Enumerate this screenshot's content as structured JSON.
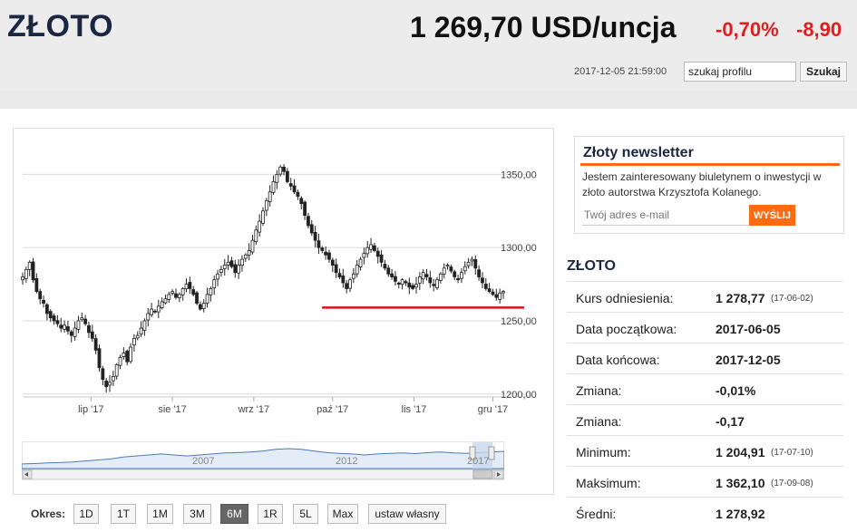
{
  "header": {
    "title": "ZŁOTO",
    "price": "1 269,70 USD/uncja",
    "change_pct": "-0,70%",
    "change_abs": "-8,90",
    "timestamp": "2017-12-05 21:59:00",
    "search_value": "szukaj profilu",
    "search_button": "Szukaj"
  },
  "colors": {
    "accent": "#ff6a13",
    "negative": "#e01e1e",
    "title": "#1a2740",
    "support_line": "#e0101a",
    "navigator_line": "#4a7bb7"
  },
  "chart_data": {
    "type": "candlestick",
    "x_tick_labels": [
      "lip '17",
      "sie '17",
      "wrz '17",
      "paź '17",
      "lis '17",
      "gru '17"
    ],
    "y_tick_labels": [
      "1350,00",
      "1300,00",
      "1250,00",
      "1200,00"
    ],
    "y_ticks": [
      1350,
      1300,
      1250,
      1200
    ],
    "ylim": [
      1198,
      1375
    ],
    "x_range": [
      "2017-06-05",
      "2017-12-05"
    ],
    "support_line": 1259,
    "grid": true,
    "close_values": [
      1280,
      1285,
      1290,
      1278,
      1270,
      1265,
      1262,
      1255,
      1252,
      1250,
      1248,
      1245,
      1247,
      1243,
      1240,
      1245,
      1250,
      1252,
      1248,
      1242,
      1238,
      1230,
      1218,
      1210,
      1205,
      1208,
      1212,
      1220,
      1225,
      1228,
      1222,
      1232,
      1238,
      1240,
      1245,
      1250,
      1255,
      1258,
      1256,
      1260,
      1263,
      1265,
      1268,
      1270,
      1266,
      1268,
      1272,
      1275,
      1272,
      1268,
      1262,
      1258,
      1262,
      1268,
      1272,
      1278,
      1282,
      1285,
      1288,
      1290,
      1287,
      1283,
      1288,
      1292,
      1295,
      1298,
      1305,
      1312,
      1318,
      1325,
      1332,
      1338,
      1345,
      1350,
      1355,
      1352,
      1345,
      1342,
      1338,
      1335,
      1330,
      1322,
      1315,
      1310,
      1305,
      1300,
      1298,
      1295,
      1292,
      1288,
      1283,
      1280,
      1276,
      1272,
      1278,
      1282,
      1288,
      1292,
      1296,
      1300,
      1302,
      1298,
      1294,
      1290,
      1286,
      1282,
      1280,
      1277,
      1275,
      1278,
      1276,
      1273,
      1272,
      1275,
      1280,
      1283,
      1280,
      1276,
      1274,
      1278,
      1282,
      1286,
      1288,
      1284,
      1280,
      1278,
      1283,
      1287,
      1290,
      1292,
      1286,
      1280,
      1276,
      1272,
      1270,
      1268,
      1266,
      1269,
      1270
    ],
    "navigator": {
      "tick_labels": [
        "2007",
        "2012",
        "2017"
      ]
    }
  },
  "period": {
    "label": "Okres:",
    "buttons": [
      "1D",
      "1T",
      "1M",
      "3M",
      "6M",
      "1R",
      "5L",
      "Max",
      "ustaw własny"
    ],
    "active": "6M"
  },
  "newsletter": {
    "title": "Złoty newsletter",
    "text": "Jestem zainteresowany biuletynem o inwestycji w złoto autorstwa Krzysztofa Kolanego.",
    "email_placeholder": "Twój adres e-mail",
    "send_button": "WYŚLIJ"
  },
  "stats": {
    "title": "ZŁOTO",
    "rows": [
      {
        "label": "Kurs odniesienia:",
        "value": "1 278,77",
        "date": "(17-06-02)"
      },
      {
        "label": "Data początkowa:",
        "value": "2017-06-05",
        "date": ""
      },
      {
        "label": "Data końcowa:",
        "value": "2017-12-05",
        "date": ""
      },
      {
        "label": "Zmiana:",
        "value": "-0,01%",
        "date": ""
      },
      {
        "label": "Zmiana:",
        "value": "-0,17",
        "date": ""
      },
      {
        "label": "Minimum:",
        "value": "1 204,91",
        "date": "(17-07-10)"
      },
      {
        "label": "Maksimum:",
        "value": "1 362,10",
        "date": "(17-09-08)"
      },
      {
        "label": "Średni:",
        "value": "1 278,92",
        "date": ""
      }
    ]
  }
}
